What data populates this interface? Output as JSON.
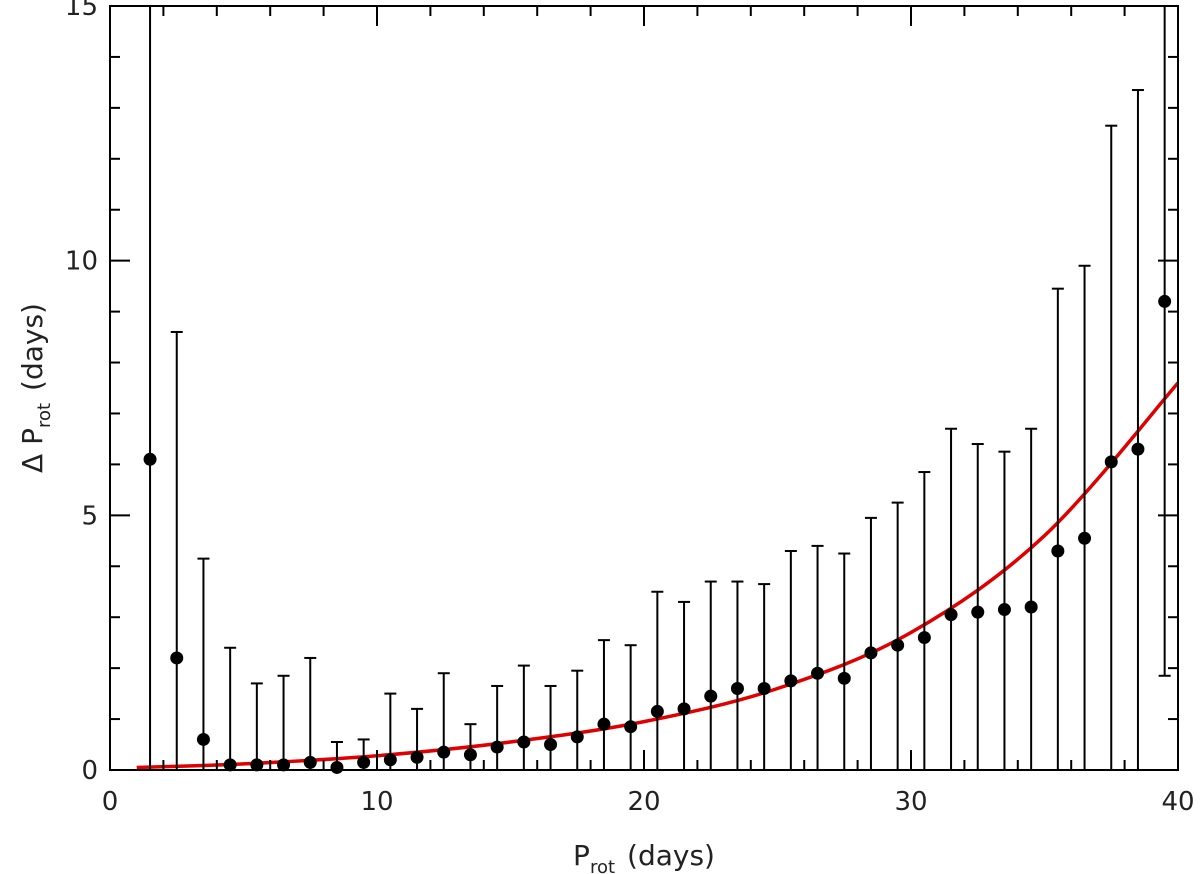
{
  "chart_data": {
    "type": "scatter",
    "xlabel": {
      "main": "P",
      "sub": "rot",
      "rest": "(days)"
    },
    "ylabel": {
      "main": "Δ P",
      "sub": "rot",
      "rest": "(days)"
    },
    "xlim": [
      0,
      40
    ],
    "ylim": [
      0,
      15
    ],
    "x_ticks": [
      0,
      10,
      20,
      30,
      40
    ],
    "y_ticks": [
      0,
      5,
      10,
      15
    ],
    "grid": false,
    "legend": "none",
    "colors": {
      "points": "#000000",
      "fit": "#e00000"
    },
    "series": [
      {
        "type": "scatter-errorbar",
        "x": [
          1.5,
          2.5,
          3.5,
          4.5,
          5.5,
          6.5,
          7.5,
          8.5,
          9.5,
          10.5,
          11.5,
          12.5,
          13.5,
          14.5,
          15.5,
          16.5,
          17.5,
          18.5,
          19.5,
          20.5,
          21.5,
          22.5,
          23.5,
          24.5,
          25.5,
          26.5,
          27.5,
          28.5,
          29.5,
          30.5,
          31.5,
          32.5,
          33.5,
          34.5,
          35.5,
          36.5,
          37.5,
          38.5,
          39.5
        ],
        "y": [
          6.1,
          2.2,
          0.6,
          0.1,
          0.1,
          0.1,
          0.15,
          0.05,
          0.15,
          0.2,
          0.25,
          0.35,
          0.3,
          0.45,
          0.55,
          0.5,
          0.65,
          0.9,
          0.85,
          1.15,
          1.2,
          1.45,
          1.6,
          1.6,
          1.75,
          1.9,
          1.8,
          2.3,
          2.45,
          2.6,
          3.05,
          3.1,
          3.15,
          3.2,
          4.3,
          4.55,
          6.05,
          6.3,
          9.2
        ],
        "err_upper": [
          15.5,
          8.6,
          4.15,
          2.4,
          1.7,
          1.85,
          2.2,
          0.55,
          0.6,
          1.5,
          1.2,
          1.9,
          0.9,
          1.65,
          2.05,
          1.65,
          1.95,
          2.55,
          2.45,
          3.5,
          3.3,
          3.7,
          3.7,
          3.65,
          4.3,
          4.4,
          4.25,
          4.95,
          5.25,
          5.85,
          6.7,
          6.4,
          6.25,
          6.7,
          9.45,
          9.9,
          12.65,
          13.35,
          15.5
        ],
        "err_lower": [
          0,
          0,
          0,
          0,
          0,
          0,
          0,
          0,
          0,
          0,
          0,
          0,
          0,
          0,
          0,
          0,
          0,
          0,
          0,
          0,
          0,
          0,
          0,
          0,
          0,
          0,
          0,
          0,
          0,
          0,
          0,
          0,
          0,
          0,
          0,
          0,
          0,
          0,
          1.85
        ]
      },
      {
        "type": "line",
        "x": [
          1,
          5,
          10,
          15,
          20,
          25,
          30,
          35,
          40
        ],
        "y": [
          0.05,
          0.12,
          0.28,
          0.55,
          0.95,
          1.6,
          2.7,
          4.6,
          7.6
        ]
      }
    ]
  }
}
